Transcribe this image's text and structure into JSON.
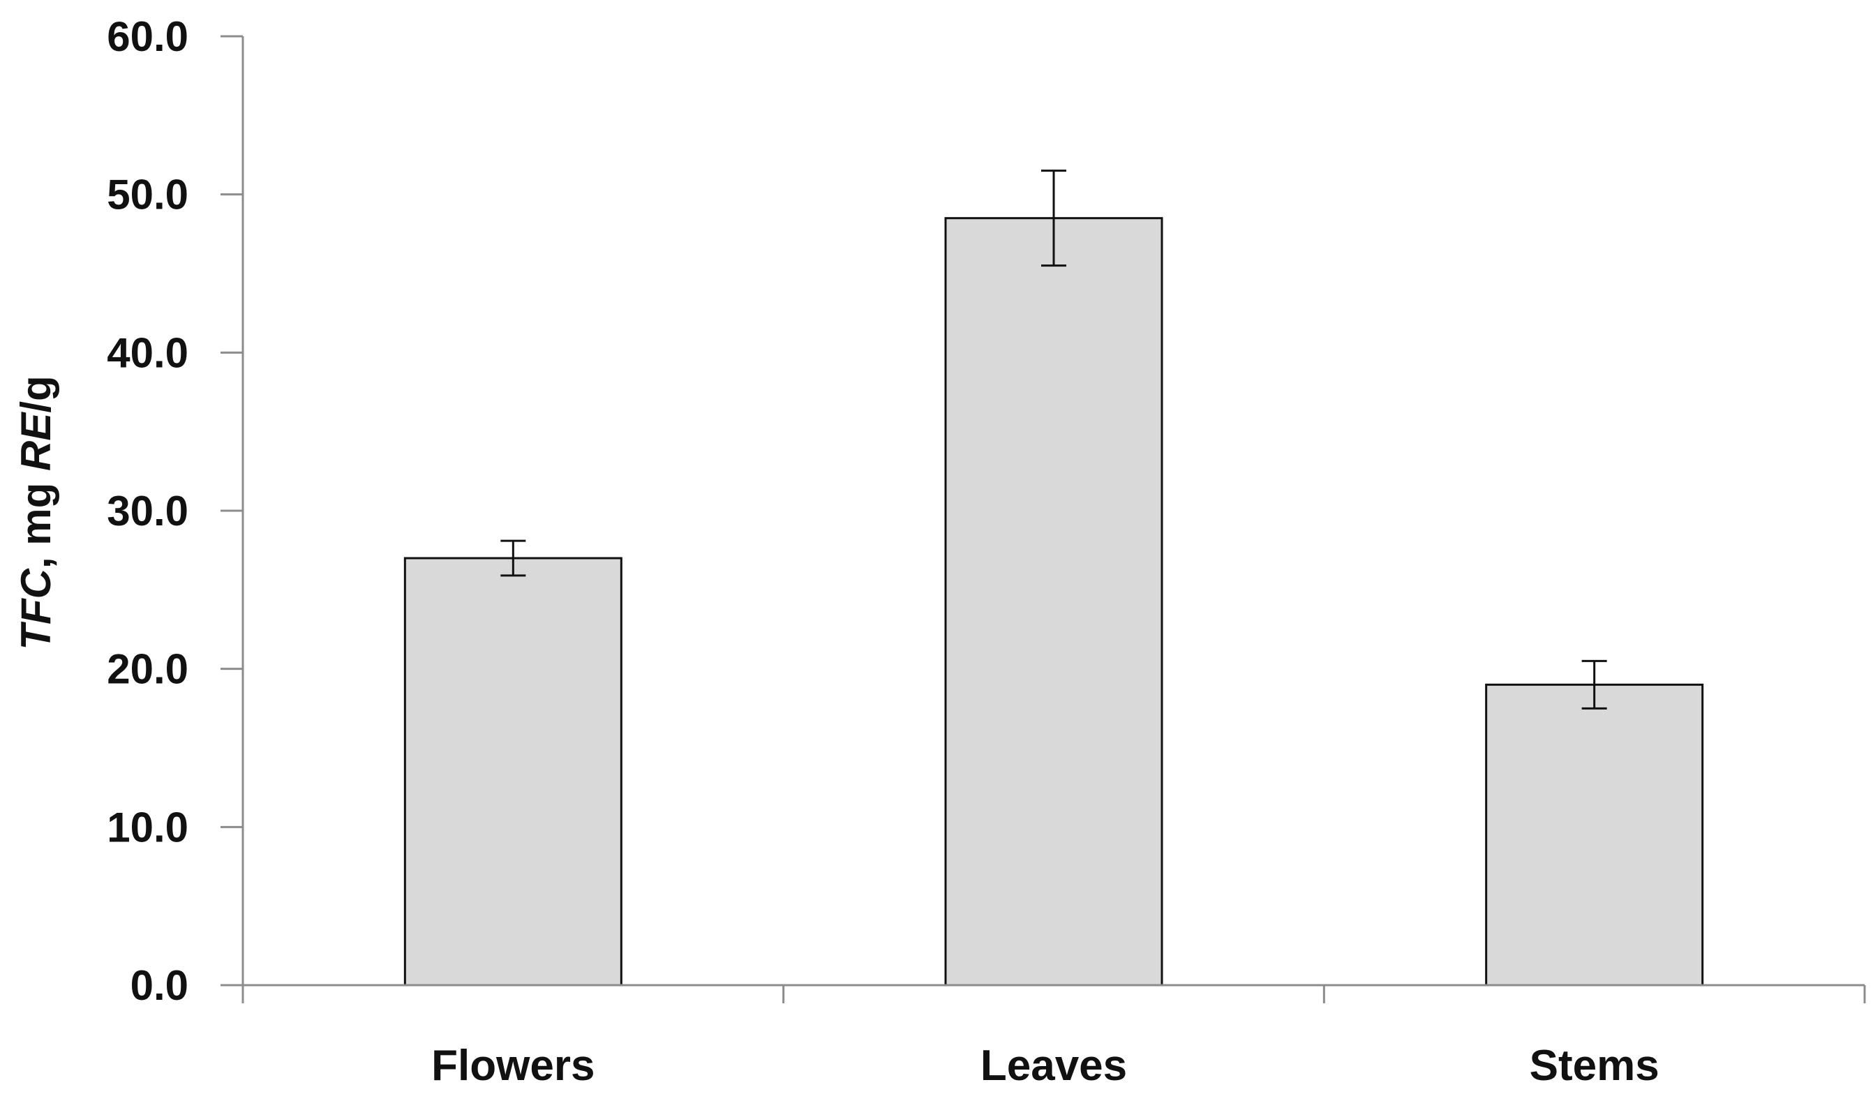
{
  "chart_data": {
    "type": "bar",
    "categories": [
      "Flowers",
      "Leaves",
      "Stems"
    ],
    "values": [
      27.0,
      48.5,
      19.0
    ],
    "errors": [
      1.1,
      3.0,
      1.5
    ],
    "ylabel_parts": [
      {
        "text": "TFC",
        "italic": true
      },
      {
        "text": ", mg ",
        "italic": false
      },
      {
        "text": "RE",
        "italic": true
      },
      {
        "text": "/g",
        "italic": false
      }
    ],
    "xlabel": "",
    "ylim": [
      0,
      60
    ],
    "yticks": [
      "0.0",
      "10.0",
      "20.0",
      "30.0",
      "40.0",
      "50.0",
      "60.0"
    ],
    "grid": false,
    "legend": "none",
    "colors": {
      "bar_fill": "#d9d9d9",
      "bar_edge": "#111111",
      "axis": "#8c8c8c"
    }
  }
}
